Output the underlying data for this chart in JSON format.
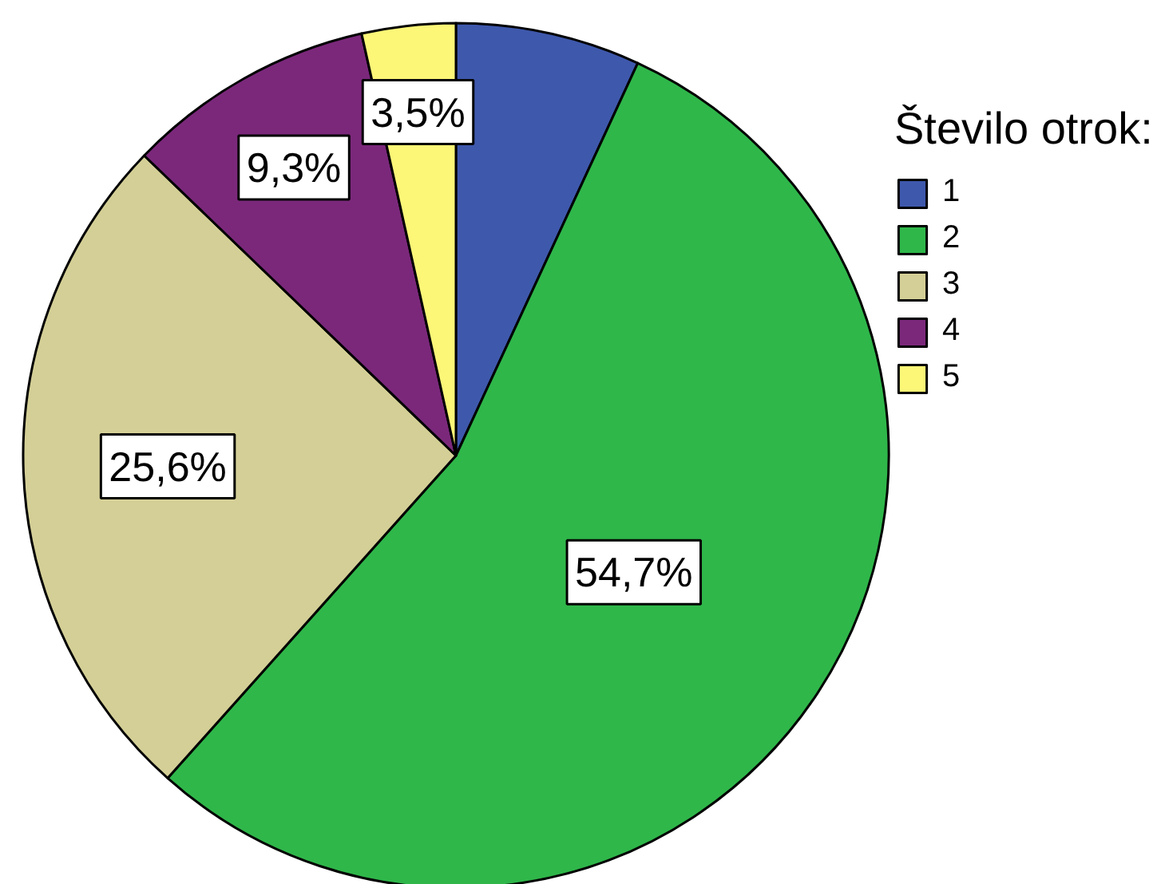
{
  "chart_data": {
    "type": "pie",
    "legend_title": "Število otrok:",
    "categories": [
      "1",
      "2",
      "3",
      "4",
      "5"
    ],
    "values": [
      6.9,
      54.7,
      25.6,
      9.3,
      3.5
    ],
    "colors": [
      "#3e58ac",
      "#2fb74a",
      "#d4cf96",
      "#7b287b",
      "#fcf777"
    ],
    "value_labels": [
      null,
      "54,7%",
      "25,6%",
      "9,3%",
      "3,5%"
    ],
    "legend": "top right"
  }
}
